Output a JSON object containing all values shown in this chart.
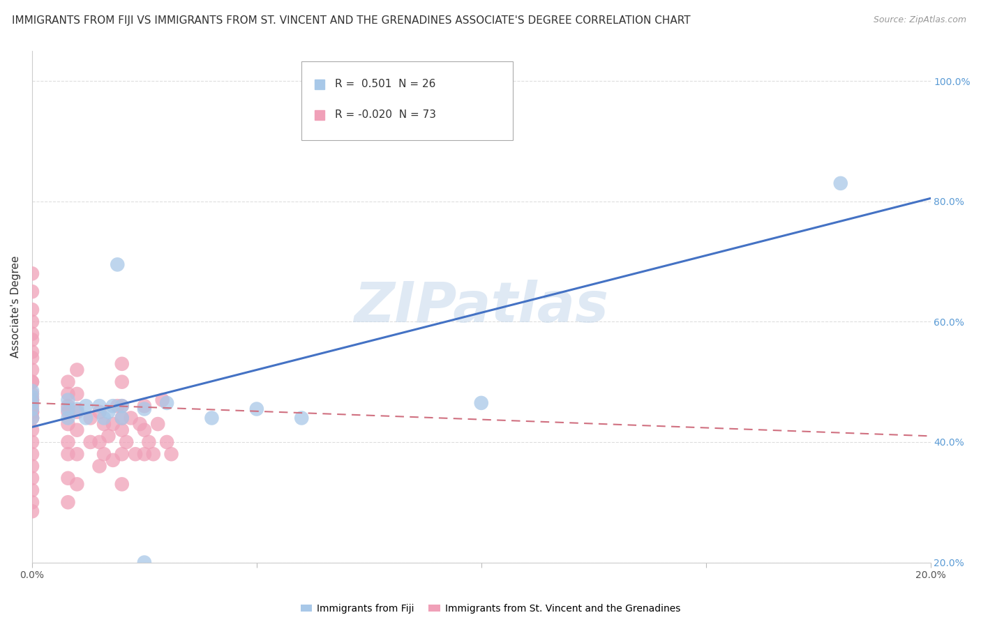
{
  "title": "IMMIGRANTS FROM FIJI VS IMMIGRANTS FROM ST. VINCENT AND THE GRENADINES ASSOCIATE'S DEGREE CORRELATION CHART",
  "source": "Source: ZipAtlas.com",
  "ylabel": "Associate's Degree",
  "watermark": "ZIPatlas",
  "legend_fiji_r": "R =",
  "legend_fiji_r_val": "0.501",
  "legend_fiji_n": "N =",
  "legend_fiji_n_val": "26",
  "legend_sv_r": "R =",
  "legend_sv_r_val": "-0.020",
  "legend_sv_n": "N =",
  "legend_sv_n_val": "73",
  "fiji_color": "#a8c8e8",
  "sv_color": "#f0a0b8",
  "fiji_line_color": "#4472c4",
  "sv_line_color": "#d07080",
  "xmin": 0.0,
  "xmax": 0.2,
  "ymin": 0.2,
  "ymax": 1.05,
  "fiji_line_x0": 0.0,
  "fiji_line_y0": 0.425,
  "fiji_line_x1": 0.2,
  "fiji_line_y1": 0.805,
  "sv_line_x0": 0.0,
  "sv_line_y0": 0.465,
  "sv_line_x1": 0.2,
  "sv_line_y1": 0.41,
  "fiji_points_x": [
    0.0,
    0.0,
    0.0,
    0.0,
    0.0,
    0.008,
    0.008,
    0.008,
    0.01,
    0.012,
    0.012,
    0.015,
    0.02,
    0.02,
    0.025,
    0.03,
    0.04,
    0.05,
    0.019,
    0.016,
    0.017,
    0.018,
    0.1,
    0.06,
    0.18,
    0.025
  ],
  "fiji_points_y": [
    0.44,
    0.455,
    0.465,
    0.475,
    0.485,
    0.44,
    0.455,
    0.47,
    0.455,
    0.44,
    0.46,
    0.46,
    0.44,
    0.46,
    0.455,
    0.465,
    0.44,
    0.455,
    0.695,
    0.44,
    0.45,
    0.46,
    0.465,
    0.44,
    0.83,
    0.2
  ],
  "sv_points_x": [
    0.0,
    0.0,
    0.0,
    0.0,
    0.0,
    0.0,
    0.0,
    0.0,
    0.0,
    0.0,
    0.0,
    0.0,
    0.0,
    0.0,
    0.0,
    0.0,
    0.0,
    0.0,
    0.0,
    0.0,
    0.0,
    0.0,
    0.0,
    0.0,
    0.0,
    0.0,
    0.0,
    0.008,
    0.008,
    0.008,
    0.008,
    0.008,
    0.008,
    0.008,
    0.008,
    0.008,
    0.01,
    0.01,
    0.01,
    0.01,
    0.01,
    0.01,
    0.013,
    0.013,
    0.015,
    0.015,
    0.015,
    0.016,
    0.016,
    0.017,
    0.018,
    0.018,
    0.019,
    0.02,
    0.02,
    0.02,
    0.02,
    0.02,
    0.02,
    0.02,
    0.021,
    0.022,
    0.023,
    0.024,
    0.025,
    0.025,
    0.025,
    0.026,
    0.027,
    0.028,
    0.029,
    0.03,
    0.031
  ],
  "sv_points_y": [
    0.285,
    0.3,
    0.32,
    0.34,
    0.36,
    0.38,
    0.4,
    0.42,
    0.44,
    0.44,
    0.45,
    0.45,
    0.46,
    0.47,
    0.47,
    0.48,
    0.5,
    0.52,
    0.55,
    0.58,
    0.6,
    0.62,
    0.65,
    0.68,
    0.54,
    0.57,
    0.5,
    0.3,
    0.34,
    0.38,
    0.4,
    0.43,
    0.45,
    0.46,
    0.48,
    0.5,
    0.33,
    0.38,
    0.42,
    0.45,
    0.48,
    0.52,
    0.4,
    0.44,
    0.36,
    0.4,
    0.45,
    0.38,
    0.43,
    0.41,
    0.37,
    0.43,
    0.46,
    0.33,
    0.38,
    0.42,
    0.44,
    0.46,
    0.5,
    0.53,
    0.4,
    0.44,
    0.38,
    0.43,
    0.38,
    0.42,
    0.46,
    0.4,
    0.38,
    0.43,
    0.47,
    0.4,
    0.38
  ],
  "background_color": "#ffffff",
  "grid_color": "#dddddd",
  "title_fontsize": 11,
  "axis_label_fontsize": 11,
  "tick_fontsize": 10,
  "legend_fontsize": 11
}
